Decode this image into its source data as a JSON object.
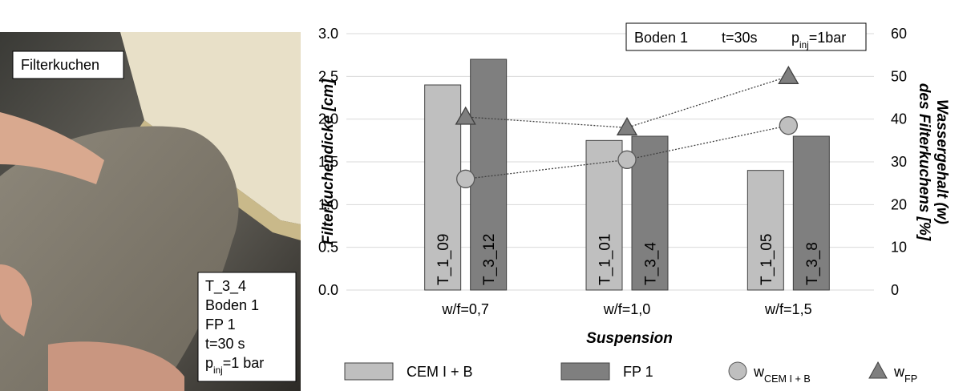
{
  "photo_labels": {
    "top": "Filterkuchen",
    "lines": [
      "T_3_4",
      "Boden 1",
      "FP 1",
      "t=30 s"
    ],
    "last_line": [
      {
        "text": "p"
      },
      {
        "sub": "inj"
      },
      {
        "text": "=1 bar"
      }
    ]
  },
  "chart_data": {
    "type": "bar",
    "categories": [
      "w/f=0,7",
      "w/f=1,0",
      "w/f=1,5"
    ],
    "series": [
      {
        "name": "CEM I + B",
        "color": "#bfbfbf",
        "values": [
          2.4,
          1.75,
          1.4
        ],
        "bar_labels": [
          "T_1_09",
          "T_1_01",
          "T_1_05"
        ]
      },
      {
        "name": "FP 1",
        "color": "#7f7f7f",
        "values": [
          2.7,
          1.8,
          1.8
        ],
        "bar_labels": [
          "T_3_12",
          "T_3_4",
          "T_3_8"
        ]
      },
      {
        "type": "line",
        "name": "w",
        "subscript": "CEM I + B",
        "marker": "circle",
        "color": "#bfbfbf",
        "axis": "y2",
        "values": [
          26,
          30.5,
          38.5
        ]
      },
      {
        "type": "line",
        "name": "w",
        "subscript": "FP",
        "marker": "triangle",
        "color": "#7f7f7f",
        "axis": "y2",
        "values": [
          40.5,
          38,
          50
        ]
      }
    ],
    "ylim": [
      0,
      3
    ],
    "yticks": [
      {
        "value": 0,
        "label": "0.0"
      },
      {
        "value": 0.5,
        "label": "0.5"
      },
      {
        "value": 1,
        "label": "1.0"
      },
      {
        "value": 1.5,
        "label": "1.5"
      },
      {
        "value": 2,
        "label": "2.0"
      },
      {
        "value": 2.5,
        "label": "2.5"
      },
      {
        "value": 3,
        "label": "3.0"
      }
    ],
    "y2lim": [
      0,
      60
    ],
    "y2ticks": [
      0,
      10,
      20,
      30,
      40,
      50,
      60
    ],
    "ylabel": "Filterkuchendicke [cm]",
    "y2label": [
      "Wassergehalt (w)",
      "des Filterkuchens [%]"
    ],
    "xlabel": "Suspension",
    "info_box": [
      "Boden 1",
      "t=30s",
      [
        {
          "text": "p"
        },
        {
          "sub": "inj"
        },
        {
          "text": "=1bar"
        }
      ]
    ],
    "grid": true
  }
}
